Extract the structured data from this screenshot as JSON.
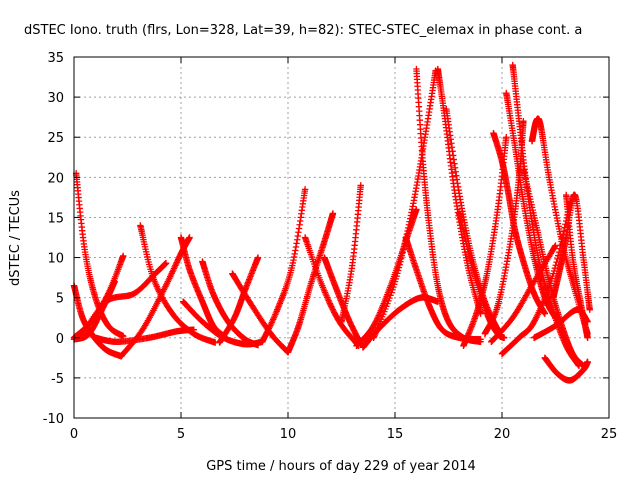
{
  "chart_data": {
    "type": "scatter",
    "title": "dSTEC Iono. truth (flrs, Lon=328, Lat=39, h=82): STEC-STEC_elemax in phase cont. a",
    "xlabel": "GPS time / hours of day 229 of year 2014",
    "ylabel": "dSTEC  / TECUs",
    "xlim": [
      0,
      25
    ],
    "ylim": [
      -10,
      35
    ],
    "xticks": [
      0,
      5,
      10,
      15,
      20,
      25
    ],
    "yticks": [
      -10,
      -5,
      0,
      5,
      10,
      15,
      20,
      25,
      30,
      35
    ],
    "grid": true,
    "marker": "+",
    "color": "#ff0000",
    "series": [
      {
        "x": [
          0.0,
          0.4,
          0.9,
          1.5,
          2.2
        ],
        "y": [
          6.5,
          2.5,
          0.2,
          -1.5,
          -2.3
        ]
      },
      {
        "x": [
          0.1,
          0.5,
          1.0,
          1.6,
          2.3
        ],
        "y": [
          20.5,
          11.0,
          5.0,
          1.5,
          0.2
        ]
      },
      {
        "x": [
          0.0,
          0.8,
          1.6,
          2.3
        ],
        "y": [
          0.0,
          2.0,
          5.5,
          10.2
        ]
      },
      {
        "x": [
          0.0,
          0.7,
          1.4,
          1.9
        ],
        "y": [
          -0.2,
          0.5,
          4.0,
          7.0
        ]
      },
      {
        "x": [
          0.3,
          1.5,
          2.8,
          3.8,
          4.3
        ],
        "y": [
          0.0,
          4.5,
          5.5,
          8.0,
          9.3
        ]
      },
      {
        "x": [
          1.0,
          2.0,
          3.5,
          4.8,
          5.6
        ],
        "y": [
          0.0,
          -0.5,
          0.0,
          0.8,
          1.0
        ]
      },
      {
        "x": [
          3.1,
          3.7,
          4.6,
          5.6,
          6.6
        ],
        "y": [
          14.0,
          7.5,
          3.0,
          0.5,
          -0.6
        ]
      },
      {
        "x": [
          2.2,
          3.2,
          4.2,
          5.0,
          5.4
        ],
        "y": [
          -2.3,
          1.0,
          6.0,
          10.5,
          12.5
        ]
      },
      {
        "x": [
          5.0,
          5.4,
          6.0,
          6.5,
          7.0
        ],
        "y": [
          12.5,
          8.5,
          4.5,
          1.5,
          0.2
        ]
      },
      {
        "x": [
          5.1,
          6.0,
          7.0,
          8.0,
          8.8
        ],
        "y": [
          4.5,
          2.0,
          0.0,
          -0.8,
          -0.5
        ]
      },
      {
        "x": [
          6.0,
          6.5,
          7.2,
          8.0,
          8.6
        ],
        "y": [
          9.5,
          5.5,
          2.0,
          -0.2,
          -0.9
        ]
      },
      {
        "x": [
          6.8,
          7.5,
          8.0,
          8.6
        ],
        "y": [
          -0.6,
          2.5,
          6.0,
          10.0
        ]
      },
      {
        "x": [
          7.4,
          8.2,
          9.2,
          10.0
        ],
        "y": [
          8.0,
          4.5,
          0.5,
          -1.8
        ]
      },
      {
        "x": [
          8.8,
          9.5,
          10.2,
          10.8
        ],
        "y": [
          -0.5,
          3.5,
          9.0,
          18.5
        ]
      },
      {
        "x": [
          10.0,
          10.5,
          11.1,
          11.7,
          12.1
        ],
        "y": [
          -1.8,
          1.5,
          7.0,
          12.0,
          15.5
        ]
      },
      {
        "x": [
          10.8,
          11.6,
          12.4,
          13.3
        ],
        "y": [
          12.5,
          6.5,
          2.0,
          -1.0
        ]
      },
      {
        "x": [
          11.7,
          12.2,
          12.8,
          13.4
        ],
        "y": [
          10.0,
          6.5,
          2.5,
          -0.8
        ]
      },
      {
        "x": [
          12.5,
          13.0,
          13.4
        ],
        "y": [
          2.0,
          9.0,
          19.0
        ]
      },
      {
        "x": [
          13.2,
          14.0,
          14.8,
          15.5,
          16.0
        ],
        "y": [
          -1.0,
          1.5,
          6.5,
          12.0,
          16.0
        ]
      },
      {
        "x": [
          13.5,
          14.2,
          15.2,
          16.2,
          17.0
        ],
        "y": [
          -1.2,
          1.0,
          3.5,
          5.0,
          4.5
        ]
      },
      {
        "x": [
          14.0,
          15.0,
          15.8,
          16.4,
          16.9
        ],
        "y": [
          0.0,
          7.0,
          16.0,
          25.0,
          33.3
        ]
      },
      {
        "x": [
          15.5,
          16.0,
          16.6,
          17.2,
          18.0,
          19.0
        ],
        "y": [
          12.5,
          8.5,
          4.0,
          1.0,
          0.0,
          -0.2
        ]
      },
      {
        "x": [
          16.0,
          16.3,
          16.6,
          17.0,
          17.5,
          18.2,
          19.0
        ],
        "y": [
          33.5,
          22.0,
          14.0,
          6.5,
          2.0,
          0.0,
          -0.5
        ]
      },
      {
        "x": [
          17.0,
          17.3,
          17.8,
          18.4,
          19.0
        ],
        "y": [
          33.5,
          28.0,
          18.0,
          9.0,
          3.0
        ]
      },
      {
        "x": [
          17.4,
          18.0,
          18.6,
          19.2,
          19.8
        ],
        "y": [
          28.5,
          18.0,
          10.0,
          4.5,
          1.0
        ]
      },
      {
        "x": [
          18.0,
          18.6,
          19.3,
          19.8,
          20.1
        ],
        "y": [
          15.5,
          9.0,
          3.0,
          0.5,
          0.0
        ]
      },
      {
        "x": [
          18.2,
          18.8,
          19.3,
          19.8,
          20.2
        ],
        "y": [
          -1.0,
          3.0,
          8.0,
          16.0,
          25.0
        ]
      },
      {
        "x": [
          19.6,
          20.0,
          20.3,
          20.6,
          21.0,
          21.5,
          22.0
        ],
        "y": [
          25.5,
          22.0,
          18.0,
          13.5,
          9.5,
          5.5,
          3.0
        ]
      },
      {
        "x": [
          20.2,
          20.6,
          21.0,
          21.5,
          22.0,
          22.5
        ],
        "y": [
          30.5,
          24.0,
          17.0,
          10.0,
          5.0,
          2.5
        ]
      },
      {
        "x": [
          20.5,
          20.8,
          21.2,
          21.7,
          22.3,
          23.0,
          23.6
        ],
        "y": [
          34.0,
          27.0,
          18.0,
          10.0,
          4.0,
          -1.0,
          -3.5
        ]
      },
      {
        "x": [
          19.2,
          19.8,
          20.4,
          20.8,
          21.0
        ],
        "y": [
          0.5,
          4.0,
          12.0,
          20.0,
          27.0
        ]
      },
      {
        "x": [
          21.0,
          21.6,
          22.2,
          22.8,
          23.3,
          23.8
        ],
        "y": [
          21.0,
          14.0,
          7.0,
          1.5,
          -2.0,
          -3.5
        ]
      },
      {
        "x": [
          21.4,
          21.6,
          21.8,
          22.2,
          22.8,
          23.4,
          24.0
        ],
        "y": [
          24.5,
          27.0,
          26.5,
          20.0,
          12.0,
          6.0,
          0.5
        ]
      },
      {
        "x": [
          20.0,
          20.8,
          21.5,
          22.4,
          23.2
        ],
        "y": [
          -2.0,
          0.0,
          2.0,
          8.0,
          17.0
        ]
      },
      {
        "x": [
          22.4,
          22.7,
          23.0,
          23.4,
          23.8,
          24.1
        ],
        "y": [
          5.0,
          8.5,
          12.5,
          17.8,
          10.0,
          3.5
        ]
      },
      {
        "x": [
          23.0,
          23.3,
          23.7,
          24.0
        ],
        "y": [
          17.8,
          10.0,
          4.0,
          0.0
        ]
      },
      {
        "x": [
          22.0,
          22.6,
          23.2,
          23.8,
          24.0
        ],
        "y": [
          -2.5,
          -4.5,
          -5.3,
          -4.0,
          -3.0
        ]
      },
      {
        "x": [
          19.5,
          20.5,
          21.5,
          22.5
        ],
        "y": [
          -0.5,
          2.5,
          7.0,
          11.5
        ]
      },
      {
        "x": [
          21.5,
          22.5,
          23.5,
          24.0
        ],
        "y": [
          0.0,
          1.5,
          3.5,
          2.0
        ]
      }
    ]
  }
}
